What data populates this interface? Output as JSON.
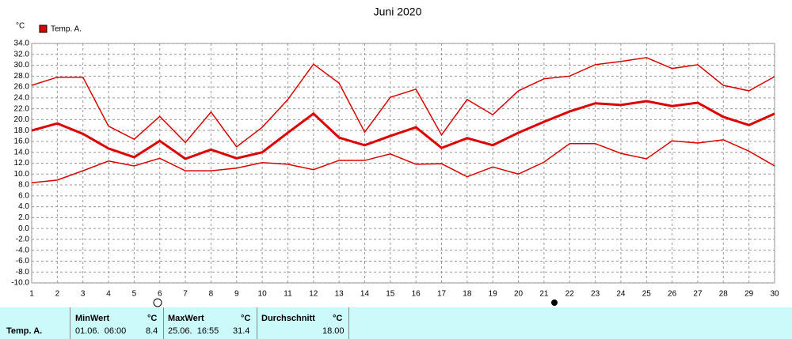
{
  "chart_data": {
    "type": "line",
    "title": "Juni 2020",
    "unit": "°C",
    "legend": {
      "label": "Temp. A.",
      "color": "#dd0000"
    },
    "x": [
      1,
      2,
      3,
      4,
      5,
      6,
      7,
      8,
      9,
      10,
      11,
      12,
      13,
      14,
      15,
      16,
      17,
      18,
      19,
      20,
      21,
      22,
      23,
      24,
      25,
      26,
      27,
      28,
      29,
      30
    ],
    "xlim": [
      1,
      30
    ],
    "xticks": [
      1,
      2,
      3,
      4,
      5,
      6,
      7,
      8,
      9,
      10,
      11,
      12,
      13,
      14,
      15,
      16,
      17,
      18,
      19,
      20,
      21,
      22,
      23,
      24,
      25,
      26,
      27,
      28,
      29,
      30
    ],
    "ylim": [
      -10,
      34
    ],
    "yticks": [
      {
        "value": -10,
        "label": "-10.0"
      },
      {
        "value": -8,
        "label": "-8.0"
      },
      {
        "value": -6,
        "label": "-6.0"
      },
      {
        "value": -4,
        "label": "-4.0"
      },
      {
        "value": -2,
        "label": "-2.0"
      },
      {
        "value": 0,
        "label": "0.0"
      },
      {
        "value": 2,
        "label": "2.0"
      },
      {
        "value": 4,
        "label": "4.0"
      },
      {
        "value": 6,
        "label": "6.0"
      },
      {
        "value": 8,
        "label": "8.0"
      },
      {
        "value": 10,
        "label": "10.0"
      },
      {
        "value": 12,
        "label": "12.0"
      },
      {
        "value": 14,
        "label": "14.0"
      },
      {
        "value": 16,
        "label": "16.0"
      },
      {
        "value": 18,
        "label": "18.0"
      },
      {
        "value": 20,
        "label": "20.0"
      },
      {
        "value": 22,
        "label": "22.0"
      },
      {
        "value": 24,
        "label": "24.0"
      },
      {
        "value": 26,
        "label": "26.0"
      },
      {
        "value": 28,
        "label": "28.0"
      },
      {
        "value": 30,
        "label": "30.0"
      },
      {
        "value": 32,
        "label": "32.0"
      },
      {
        "value": 34,
        "label": "34.0"
      }
    ],
    "grid": true,
    "series": [
      {
        "color": "#dd0000",
        "width": 1.5,
        "values": [
          26.3,
          27.8,
          27.8,
          18.8,
          16.4,
          20.6,
          15.8,
          21.4,
          15.0,
          18.6,
          23.7,
          30.2,
          26.7,
          17.7,
          24.1,
          25.6,
          17.2,
          23.7,
          20.9,
          25.3,
          27.5,
          28.0,
          30.1,
          30.7,
          31.4,
          29.4,
          30.1,
          26.3,
          25.3,
          27.9
        ]
      },
      {
        "color": "#dd0000",
        "width": 3,
        "values": [
          18.0,
          19.3,
          17.4,
          14.7,
          13.1,
          16.1,
          12.8,
          14.5,
          12.9,
          14.0,
          17.6,
          21.1,
          16.7,
          15.3,
          17.0,
          18.6,
          14.8,
          16.6,
          15.3,
          17.6,
          19.6,
          21.5,
          23.0,
          22.7,
          23.4,
          22.5,
          23.1,
          20.5,
          19.0,
          21.1
        ]
      },
      {
        "color": "#dd0000",
        "width": 1.5,
        "values": [
          8.4,
          8.9,
          10.6,
          12.4,
          11.5,
          12.9,
          10.6,
          10.6,
          11.1,
          12.1,
          11.8,
          10.8,
          12.5,
          12.5,
          13.7,
          11.8,
          11.9,
          9.5,
          11.3,
          10.0,
          12.2,
          15.6,
          15.6,
          13.8,
          12.8,
          16.1,
          15.7,
          16.3,
          14.2,
          11.5
        ]
      }
    ]
  },
  "stats": {
    "row_label": "Temp. A.",
    "min": {
      "title": "MinWert",
      "unit": "°C",
      "time": "01.06.  06:00",
      "value": "8.4"
    },
    "max": {
      "title": "MaxWert",
      "unit": "°C",
      "time": "25.06.  16:55",
      "value": "31.4"
    },
    "avg": {
      "title": "Durchschnitt",
      "unit": "°C",
      "value": "18.00"
    }
  }
}
